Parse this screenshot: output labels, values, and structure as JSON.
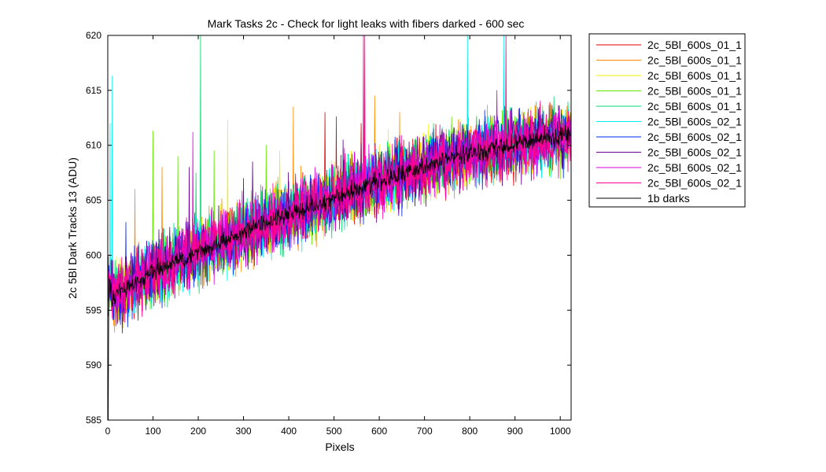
{
  "chart_data": {
    "type": "line",
    "title": "Mark Tasks 2c - Check for light leaks with fibers darked - 600 sec",
    "xlabel": "Pixels",
    "ylabel": "2c 5Bl Dark Tracks 13 (ADU)",
    "xlim": [
      0,
      1024
    ],
    "ylim": [
      585,
      620
    ],
    "xticks": [
      0,
      100,
      200,
      300,
      400,
      500,
      600,
      700,
      800,
      900,
      1000
    ],
    "yticks": [
      585,
      590,
      595,
      600,
      605,
      610,
      615,
      620
    ],
    "grid": false,
    "legend_position": "outside-right",
    "trend": {
      "description_points_x": [
        0,
        5,
        10,
        30,
        100,
        200,
        300,
        400,
        500,
        600,
        700,
        800,
        900,
        1024
      ],
      "description_points_y": [
        597,
        597.5,
        596.3,
        596.8,
        598.5,
        600.3,
        602,
        603.7,
        605.2,
        606.8,
        608.1,
        609.2,
        610.1,
        611
      ]
    },
    "series": [
      {
        "name": "2c_5Bl_600s_01_1",
        "color": "#e00000",
        "noise": 1.8,
        "spikes": [
          [
            480,
            613.0
          ],
          [
            505,
            612.6
          ],
          [
            560,
            612.0
          ]
        ]
      },
      {
        "name": "2c_5Bl_600s_01_1",
        "color": "#ff8c00",
        "noise": 1.8,
        "spikes": [
          [
            60,
            606.0
          ],
          [
            120,
            608.0
          ],
          [
            410,
            613.5
          ],
          [
            590,
            614.5
          ],
          [
            645,
            613.0
          ]
        ]
      },
      {
        "name": "2c_5Bl_600s_01_1",
        "color": "#f0f000",
        "noise": 1.8,
        "spikes": [
          [
            265,
            612.3
          ],
          [
            380,
            609.5
          ],
          [
            620,
            611.5
          ]
        ]
      },
      {
        "name": "2c_5Bl_600s_01_1",
        "color": "#64e600",
        "noise": 1.8,
        "spikes": [
          [
            100,
            611.3
          ],
          [
            155,
            609.0
          ],
          [
            235,
            609.5
          ],
          [
            350,
            610.0
          ]
        ]
      },
      {
        "name": "2c_5Bl_600s_01_1",
        "color": "#00dc6e",
        "noise": 1.8,
        "spikes": [
          [
            205,
            620.0
          ],
          [
            195,
            607.5
          ],
          [
            720,
            612.0
          ]
        ]
      },
      {
        "name": "2c_5Bl_600s_02_1",
        "color": "#00f0f0",
        "noise": 1.8,
        "spikes": [
          [
            10,
            616.3
          ],
          [
            5,
            612.0
          ],
          [
            795,
            620.0
          ],
          [
            875,
            620.0
          ]
        ]
      },
      {
        "name": "2c_5Bl_600s_02_1",
        "color": "#0028f0",
        "noise": 1.8,
        "spikes": [
          [
            40,
            603.0
          ],
          [
            300,
            607.0
          ],
          [
            640,
            610.0
          ]
        ]
      },
      {
        "name": "2c_5Bl_600s_02_1",
        "color": "#64008c",
        "noise": 1.8,
        "spikes": [
          [
            180,
            608.0
          ],
          [
            320,
            608.5
          ],
          [
            520,
            610.5
          ]
        ]
      },
      {
        "name": "2c_5Bl_600s_02_1",
        "color": "#dc00dc",
        "noise": 1.8,
        "spikes": [
          [
            188,
            611.2
          ],
          [
            570,
            609.0
          ],
          [
            860,
            615.0
          ]
        ]
      },
      {
        "name": "2c_5Bl_600s_02_1",
        "color": "#ff0090",
        "noise": 1.8,
        "spikes": [
          [
            568,
            620.0
          ],
          [
            565,
            620.0
          ],
          [
            880,
            620.0
          ]
        ]
      },
      {
        "name": "1b darks",
        "color": "#000000",
        "noise": 0.55,
        "spikes": [
          [
            1,
            585.0
          ],
          [
            2,
            594.0
          ]
        ]
      }
    ]
  }
}
